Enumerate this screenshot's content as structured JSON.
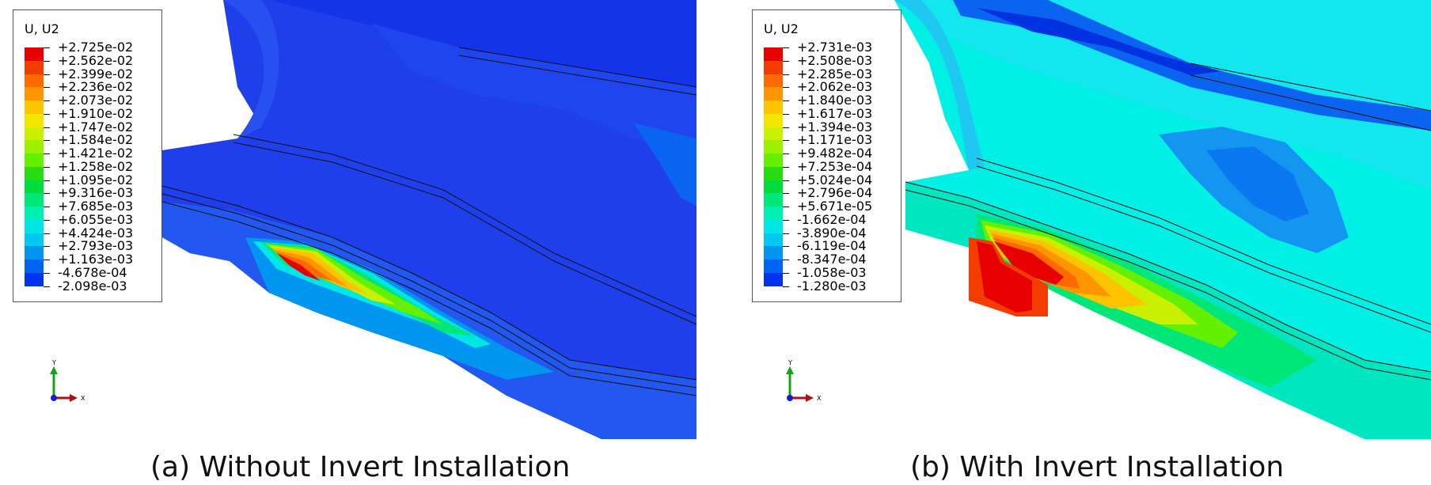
{
  "panel_a": {
    "legend_title": "U, U2",
    "legend_values": [
      "+2.725e-02",
      "+2.562e-02",
      "+2.399e-02",
      "+2.236e-02",
      "+2.073e-02",
      "+1.910e-02",
      "+1.747e-02",
      "+1.584e-02",
      "+1.421e-02",
      "+1.258e-02",
      "+1.095e-02",
      "+9.316e-03",
      "+7.685e-03",
      "+6.055e-03",
      "+4.424e-03",
      "+2.793e-03",
      "+1.163e-03",
      "-4.678e-04",
      "-2.098e-03"
    ],
    "axis_y_label": "Y",
    "axis_x_label": "X",
    "caption": "(a) Without Invert Installation"
  },
  "panel_b": {
    "legend_title": "U, U2",
    "legend_values": [
      "+2.731e-03",
      "+2.508e-03",
      "+2.285e-03",
      "+2.062e-03",
      "+1.840e-03",
      "+1.617e-03",
      "+1.394e-03",
      "+1.171e-03",
      "+9.482e-04",
      "+7.253e-04",
      "+5.024e-04",
      "+2.796e-04",
      "+5.671e-05",
      "-1.662e-04",
      "-3.890e-04",
      "-6.119e-04",
      "-8.347e-04",
      "-1.058e-03",
      "-1.280e-03"
    ],
    "axis_y_label": "Y",
    "axis_x_label": "X",
    "caption": "(b) With Invert Installation"
  },
  "colormap": [
    "#e60000",
    "#f23c00",
    "#ff6a00",
    "#ff9600",
    "#ffc400",
    "#f2e600",
    "#c8f000",
    "#9cf000",
    "#64f000",
    "#28dc14",
    "#00dc3c",
    "#00e678",
    "#00f0b4",
    "#00e6e6",
    "#00c8f0",
    "#0096f0",
    "#0064f0",
    "#0032f0",
    "#0000f0"
  ]
}
